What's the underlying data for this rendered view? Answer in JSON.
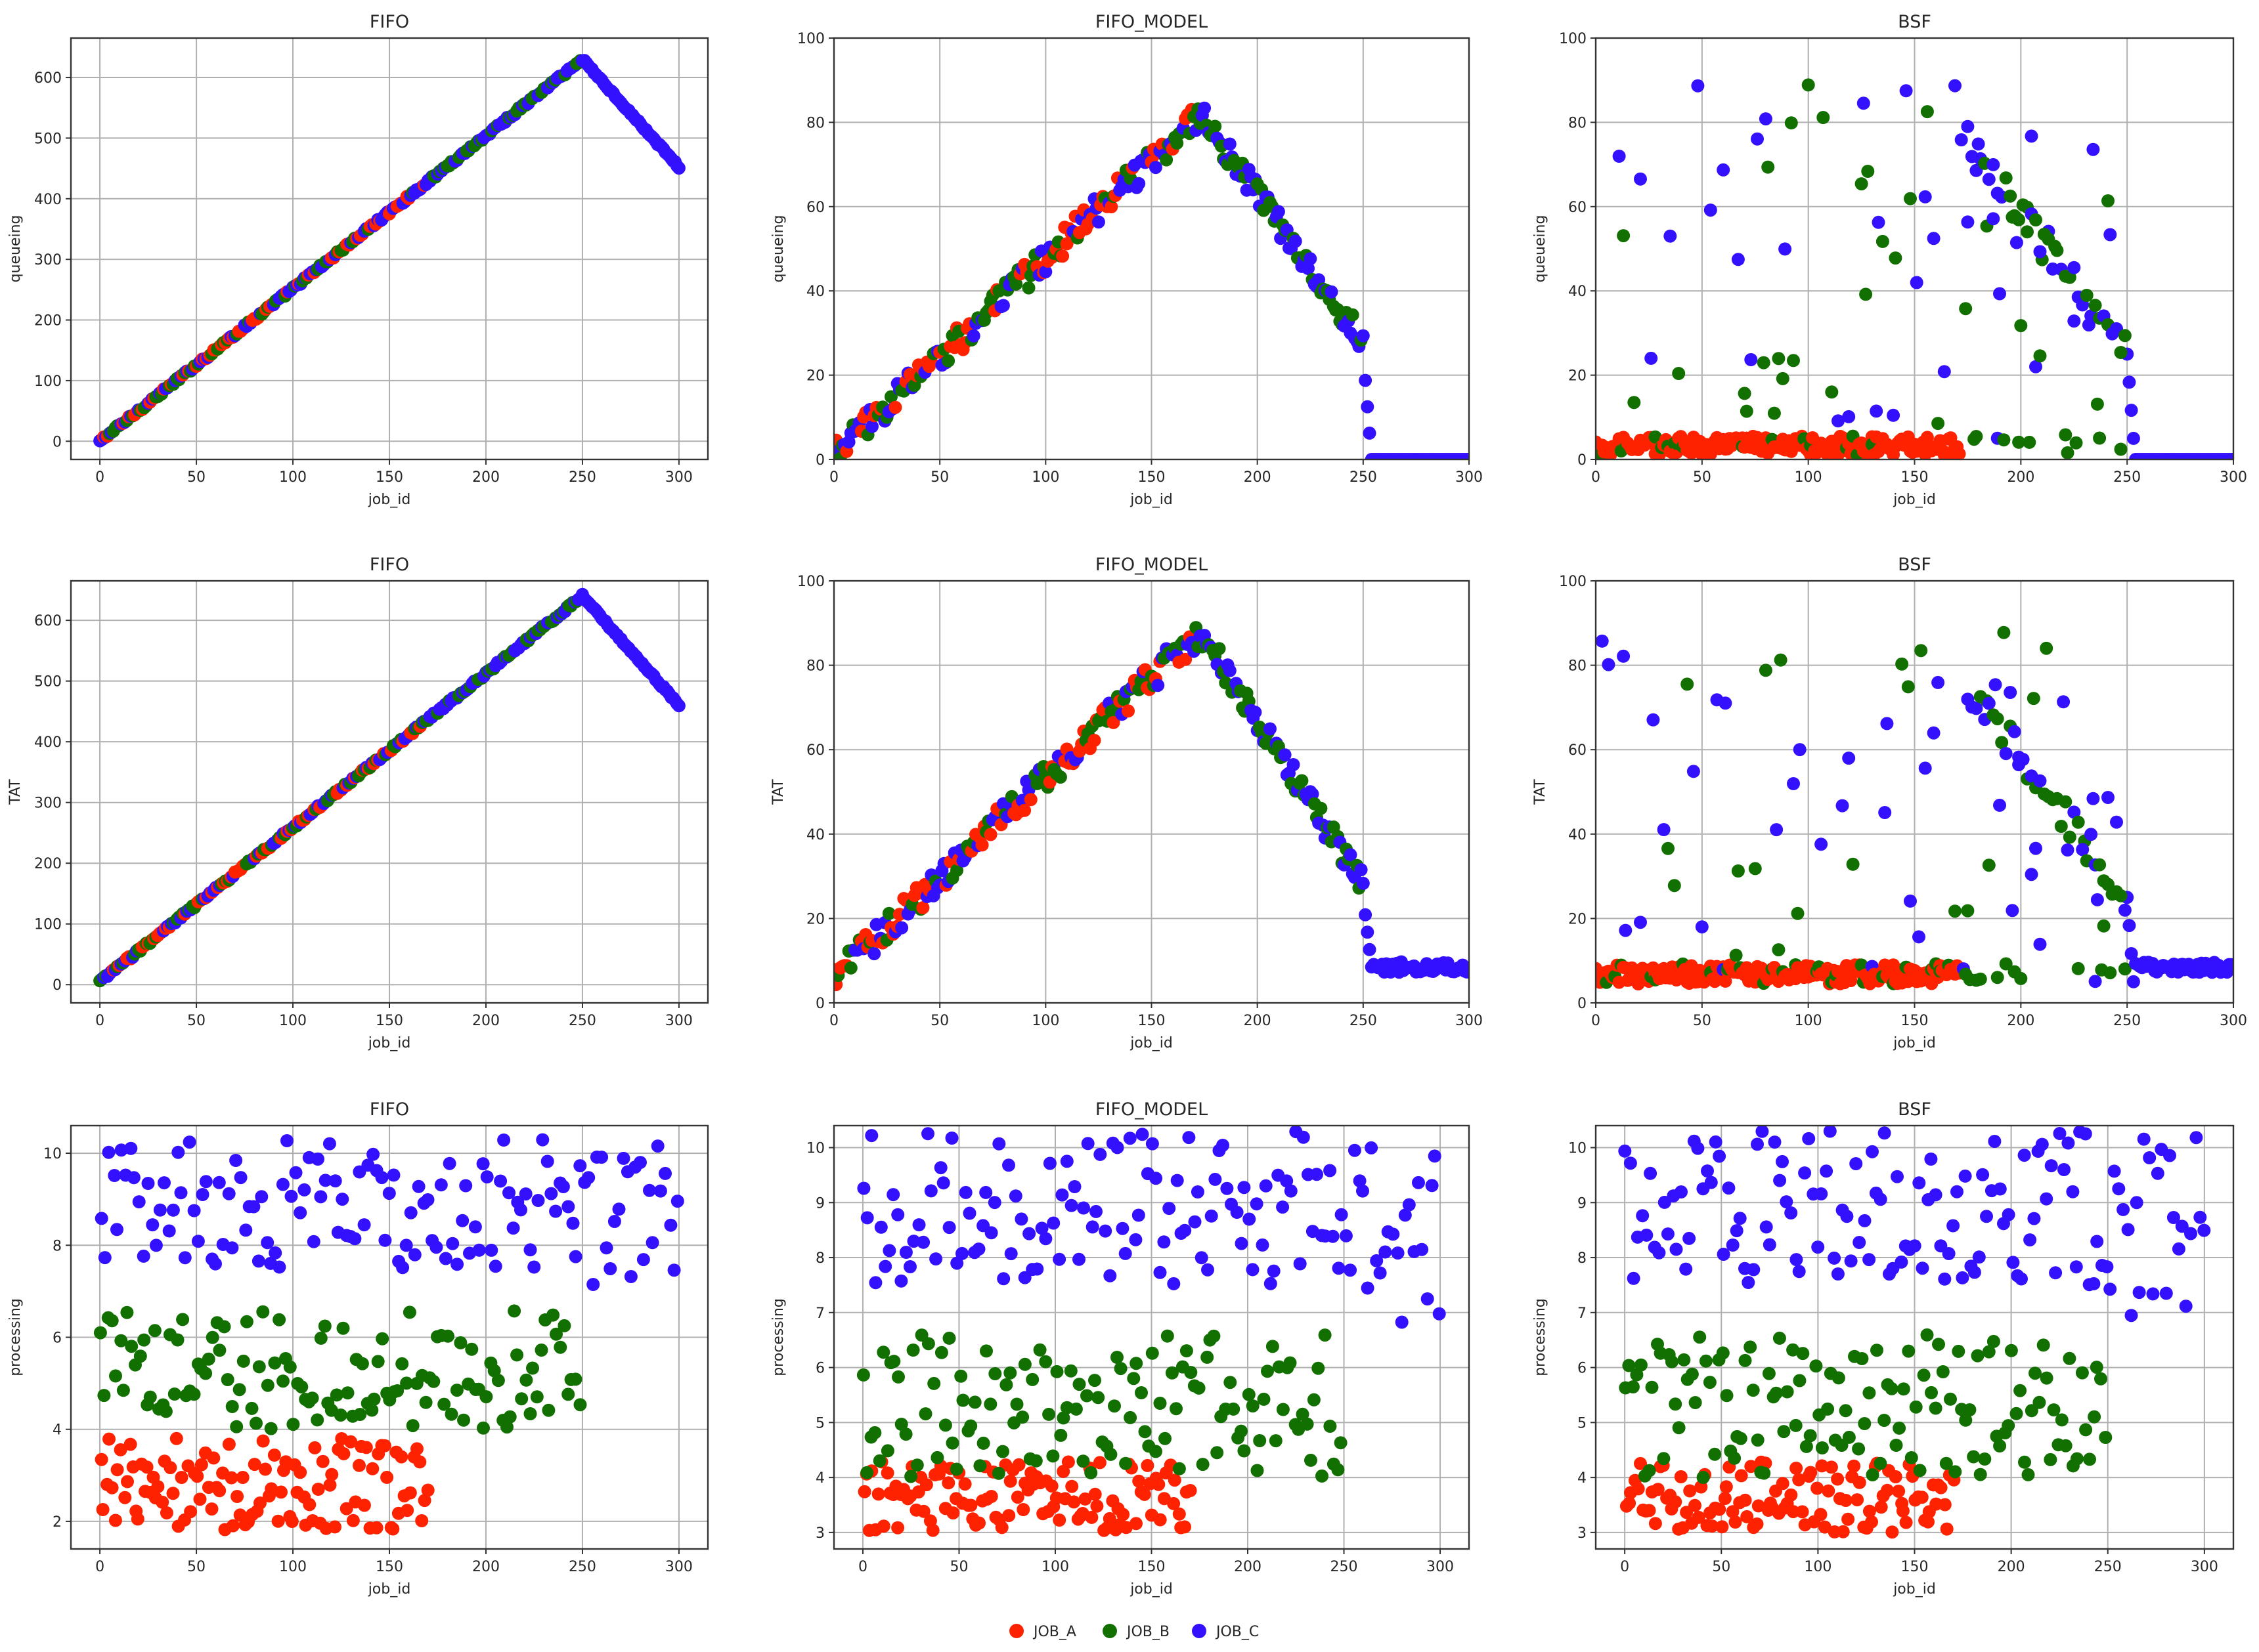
{
  "figure": {
    "legend": [
      {
        "label": "JOB_A",
        "color": "#ff2200"
      },
      {
        "label": "JOB_B",
        "color": "#127000"
      },
      {
        "label": "JOB_C",
        "color": "#3311ff"
      }
    ]
  },
  "chart_data": [
    {
      "id": "q-fifo",
      "type": "scatter",
      "title": "FIFO",
      "xlabel": "job_id",
      "ylabel": "queueing",
      "xlim": [
        -15,
        315
      ],
      "ylim": [
        -30,
        665
      ],
      "xticks": [
        0,
        50,
        100,
        150,
        200,
        250,
        300
      ],
      "yticks": [
        0,
        100,
        200,
        300,
        400,
        500,
        600
      ],
      "gen": {
        "kind": "fifo",
        "peak": 630,
        "end": 452,
        "start": 0
      }
    },
    {
      "id": "q-model",
      "type": "scatter",
      "title": "FIFO_MODEL",
      "xlabel": "job_id",
      "ylabel": "queueing",
      "xlim": [
        0,
        300
      ],
      "ylim": [
        0,
        100
      ],
      "xticks": [
        0,
        50,
        100,
        150,
        200,
        250,
        300
      ],
      "yticks": [
        0,
        20,
        40,
        60,
        80,
        100
      ],
      "gen": {
        "kind": "model",
        "peak": 82,
        "tail": 0,
        "start": 1
      }
    },
    {
      "id": "q-bsf",
      "type": "scatter",
      "title": "BSF",
      "xlabel": "job_id",
      "ylabel": "queueing",
      "xlim": [
        0,
        300
      ],
      "ylim": [
        0,
        100
      ],
      "xticks": [
        0,
        50,
        100,
        150,
        200,
        250,
        300
      ],
      "yticks": [
        0,
        20,
        40,
        60,
        80,
        100
      ],
      "gen": {
        "kind": "bsf",
        "tail": 0,
        "base": 1
      }
    },
    {
      "id": "t-fifo",
      "type": "scatter",
      "title": "FIFO",
      "xlabel": "job_id",
      "ylabel": "TAT",
      "xlim": [
        -15,
        315
      ],
      "ylim": [
        -30,
        665
      ],
      "xticks": [
        0,
        50,
        100,
        150,
        200,
        250,
        300
      ],
      "yticks": [
        0,
        100,
        200,
        300,
        400,
        500,
        600
      ],
      "gen": {
        "kind": "fifo",
        "peak": 640,
        "end": 460,
        "start": 5
      }
    },
    {
      "id": "t-model",
      "type": "scatter",
      "title": "FIFO_MODEL",
      "xlabel": "job_id",
      "ylabel": "TAT",
      "xlim": [
        0,
        300
      ],
      "ylim": [
        0,
        100
      ],
      "xticks": [
        0,
        50,
        100,
        150,
        200,
        250,
        300
      ],
      "yticks": [
        0,
        20,
        40,
        60,
        80,
        100
      ],
      "gen": {
        "kind": "model",
        "peak": 88,
        "tail": 8.5,
        "start": 6
      }
    },
    {
      "id": "t-bsf",
      "type": "scatter",
      "title": "BSF",
      "xlabel": "job_id",
      "ylabel": "TAT",
      "xlim": [
        0,
        300
      ],
      "ylim": [
        0,
        100
      ],
      "xticks": [
        0,
        50,
        100,
        150,
        200,
        250,
        300
      ],
      "yticks": [
        0,
        20,
        40,
        60,
        80,
        100
      ],
      "gen": {
        "kind": "bsf",
        "tail": 8.5,
        "base": 4.5
      }
    },
    {
      "id": "p-fifo",
      "type": "scatter",
      "title": "FIFO",
      "xlabel": "job_id",
      "ylabel": "processing",
      "xlim": [
        -15,
        315
      ],
      "ylim": [
        1.4,
        10.6
      ],
      "xticks": [
        0,
        50,
        100,
        150,
        200,
        250,
        300
      ],
      "yticks": [
        2,
        4,
        6,
        8,
        10
      ],
      "gen": {
        "kind": "proc",
        "aMin": 1.8,
        "aMax": 3.8
      }
    },
    {
      "id": "p-model",
      "type": "scatter",
      "title": "FIFO_MODEL",
      "xlabel": "job_id",
      "ylabel": "processing",
      "xlim": [
        -15,
        315
      ],
      "ylim": [
        2.7,
        10.4
      ],
      "xticks": [
        0,
        50,
        100,
        150,
        200,
        250,
        300
      ],
      "yticks": [
        3,
        4,
        5,
        6,
        7,
        8,
        9,
        10
      ],
      "gen": {
        "kind": "proc",
        "aMin": 3.0,
        "aMax": 4.3
      }
    },
    {
      "id": "p-bsf",
      "type": "scatter",
      "title": "BSF",
      "xlabel": "job_id",
      "ylabel": "processing",
      "xlim": [
        -15,
        315
      ],
      "ylim": [
        2.7,
        10.4
      ],
      "xticks": [
        0,
        50,
        100,
        150,
        200,
        250,
        300
      ],
      "yticks": [
        3,
        4,
        5,
        6,
        7,
        8,
        9,
        10
      ],
      "gen": {
        "kind": "proc",
        "aMin": 3.0,
        "aMax": 4.3
      }
    }
  ]
}
